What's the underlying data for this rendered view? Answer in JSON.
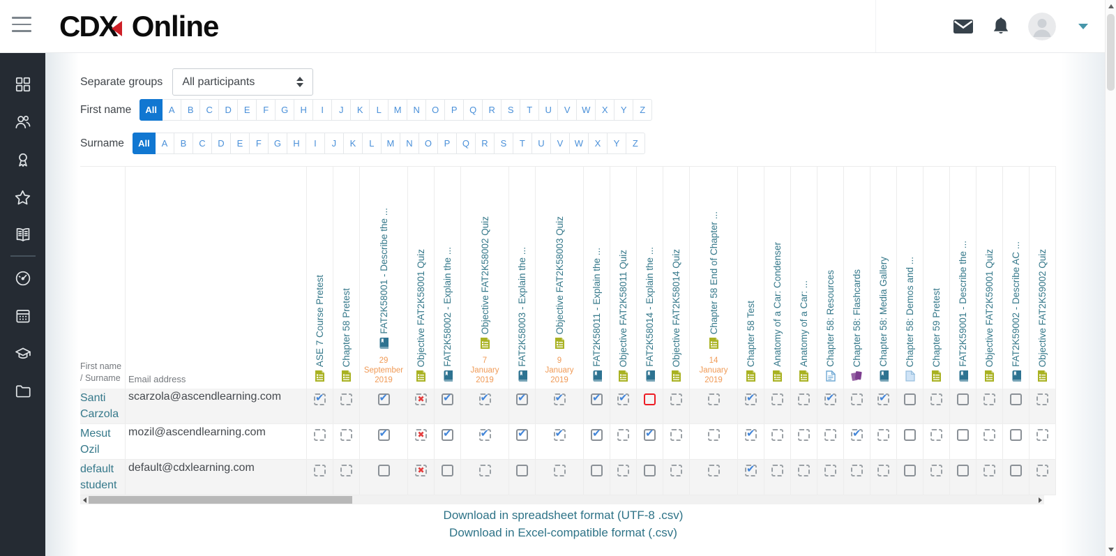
{
  "topbar": {
    "logo_primary": "CDX",
    "logo_secondary": "Online",
    "icons": [
      "messages-icon",
      "notifications-icon",
      "avatar",
      "user-menu-caret-icon"
    ]
  },
  "sidebar": {
    "items": [
      "grid-icon",
      "users-icon",
      "award-icon",
      "star-icon",
      "book-icon",
      "divider",
      "gauge-icon",
      "calendar-icon",
      "graduation-cap-icon",
      "folder-icon"
    ]
  },
  "filters": {
    "groups_label": "Separate groups",
    "groups_value": "All participants",
    "first_name_label": "First name",
    "surname_label": "Surname",
    "letters": [
      "All",
      "A",
      "B",
      "C",
      "D",
      "E",
      "F",
      "G",
      "H",
      "I",
      "J",
      "K",
      "L",
      "M",
      "N",
      "O",
      "P",
      "Q",
      "R",
      "S",
      "T",
      "U",
      "V",
      "W",
      "X",
      "Y",
      "Z"
    ],
    "first_name_active": "All",
    "surname_active": "All"
  },
  "table": {
    "name_header": "First name / Surname",
    "email_header": "Email address",
    "columns": [
      {
        "label": "ASE 7 Course Pretest",
        "icon": "quiz-icon",
        "date": ""
      },
      {
        "label": "Chapter 58 Pretest",
        "icon": "quiz-icon",
        "date": ""
      },
      {
        "label": "FAT2K58001 - Describe the ...",
        "icon": "lesson-icon",
        "date": "29 September 2019"
      },
      {
        "label": "Objective FAT2K58001 Quiz",
        "icon": "quiz-icon",
        "date": ""
      },
      {
        "label": "FAT2K58002 - Explain the ...",
        "icon": "lesson-icon",
        "date": ""
      },
      {
        "label": "Objective FAT2K58002 Quiz",
        "icon": "quiz-icon",
        "date": "7 January 2019"
      },
      {
        "label": "FAT2K58003 - Explain the ...",
        "icon": "lesson-icon",
        "date": ""
      },
      {
        "label": "Objective FAT2K58003 Quiz",
        "icon": "quiz-icon",
        "date": "9 January 2019"
      },
      {
        "label": "FAT2K58011 - Explain the ...",
        "icon": "lesson-icon",
        "date": ""
      },
      {
        "label": "Objective FAT2K58011 Quiz",
        "icon": "quiz-icon",
        "date": ""
      },
      {
        "label": "FAT2K58014 - Explain the ...",
        "icon": "lesson-icon",
        "date": ""
      },
      {
        "label": "Objective FAT2K58014 Quiz",
        "icon": "quiz-icon",
        "date": ""
      },
      {
        "label": "Chapter 58 End of Chapter ...",
        "icon": "quiz-icon",
        "date": "14 January 2019"
      },
      {
        "label": "Chapter 58 Test",
        "icon": "quiz-icon",
        "date": ""
      },
      {
        "label": "Anatomy of a Car: Condenser",
        "icon": "quiz-icon",
        "date": ""
      },
      {
        "label": "Anatomy of a Car: ...",
        "icon": "quiz-icon",
        "date": ""
      },
      {
        "label": "Chapter 58: Resources",
        "icon": "page-icon",
        "date": ""
      },
      {
        "label": "Chapter 58: Flashcards",
        "icon": "cards-icon",
        "date": ""
      },
      {
        "label": "Chapter 58: Media Gallery",
        "icon": "lesson-icon",
        "date": ""
      },
      {
        "label": "Chapter 58: Demos and ...",
        "icon": "file-icon",
        "date": ""
      },
      {
        "label": "Chapter 59 Pretest",
        "icon": "quiz-icon",
        "date": ""
      },
      {
        "label": "FAT2K59001 - Describe the ...",
        "icon": "lesson-icon",
        "date": ""
      },
      {
        "label": "Objective FAT2K59001 Quiz",
        "icon": "quiz-icon",
        "date": ""
      },
      {
        "label": "FAT2K59002 - Describe AC ...",
        "icon": "lesson-icon",
        "date": ""
      },
      {
        "label": "Objective FAT2K59002 Quiz",
        "icon": "quiz-icon",
        "date": ""
      }
    ],
    "rows": [
      {
        "name": "Santi Carzola",
        "email": "scarzola@ascendlearning.com",
        "cells": [
          "dashed-checked",
          "dashed-empty",
          "solid-checked",
          "dashed-x",
          "solid-checked",
          "dashed-checked",
          "solid-checked",
          "dashed-checked",
          "solid-checked",
          "dashed-checked",
          "red-empty",
          "dashed-empty",
          "dashed-empty",
          "dashed-checked",
          "dashed-empty",
          "dashed-empty",
          "dashed-checked",
          "dashed-empty",
          "dashed-checked",
          "solid-empty",
          "dashed-empty",
          "solid-empty",
          "dashed-empty",
          "solid-empty",
          "dashed-empty"
        ]
      },
      {
        "name": "Mesut Ozil",
        "email": "mozil@ascendlearning.com",
        "cells": [
          "dashed-empty",
          "dashed-empty",
          "solid-checked",
          "dashed-x",
          "solid-checked",
          "dashed-checked",
          "solid-checked",
          "dashed-checked",
          "solid-checked",
          "dashed-empty",
          "solid-checked",
          "dashed-empty",
          "dashed-empty",
          "dashed-checked",
          "dashed-empty",
          "dashed-empty",
          "dashed-empty",
          "dashed-checked",
          "dashed-empty",
          "solid-empty",
          "dashed-empty",
          "solid-empty",
          "dashed-empty",
          "solid-empty",
          "dashed-empty"
        ]
      },
      {
        "name": "default student",
        "email": "default@cdxlearning.com",
        "cells": [
          "dashed-empty",
          "dashed-empty",
          "solid-empty",
          "dashed-x",
          "solid-empty",
          "dashed-empty",
          "solid-empty",
          "dashed-empty",
          "solid-empty",
          "dashed-empty",
          "solid-empty",
          "dashed-empty",
          "dashed-empty",
          "dashed-checked",
          "dashed-empty",
          "dashed-empty",
          "dashed-empty",
          "dashed-empty",
          "dashed-empty",
          "solid-empty",
          "dashed-empty",
          "solid-empty",
          "dashed-empty",
          "solid-empty",
          "dashed-empty"
        ]
      }
    ]
  },
  "footer": {
    "download_utf8": "Download in spreadsheet format (UTF-8 .csv)",
    "download_excel": "Download in Excel-compatible format (.csv)"
  },
  "colors": {
    "accent_blue": "#1177d1",
    "letter_blue": "#4a90d9",
    "teal_link": "#35788a",
    "date_orange": "#f09a56",
    "quiz_icon_olive": "#a9b223",
    "lesson_icon_teal": "#2e7391",
    "page_icon_blue": "#6ea8d4",
    "file_icon_light": "#cfe3f6",
    "cards_icon_purple": "#7d3e8f",
    "check_blue": "#4285d8",
    "fail_red": "#e43d3d",
    "overdue_red": "#ed1c24",
    "sidebar_dark": "#252b33"
  }
}
